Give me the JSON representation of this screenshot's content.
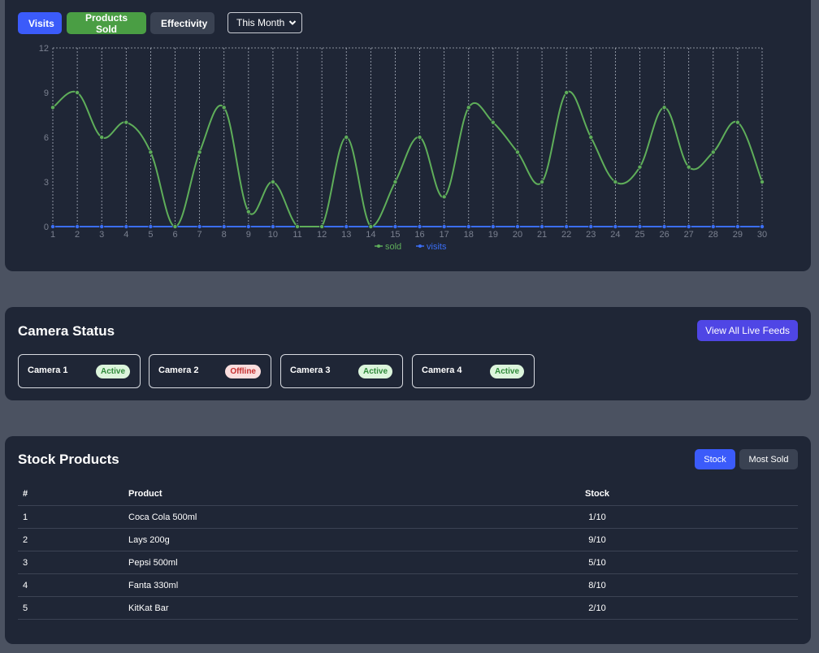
{
  "chart_controls": {
    "tabs": [
      {
        "label": "Visits",
        "color": "#3b5bfa"
      },
      {
        "label": "Products Sold",
        "color": "#4a9e44"
      },
      {
        "label": "Effectivity",
        "color": "#3a4252"
      }
    ],
    "range_select": {
      "value": "This Month",
      "icon": "chevron-down-icon"
    }
  },
  "chart_data": {
    "type": "line",
    "x": [
      1,
      2,
      3,
      4,
      5,
      6,
      7,
      8,
      9,
      10,
      11,
      12,
      13,
      14,
      15,
      16,
      17,
      18,
      19,
      20,
      21,
      22,
      23,
      24,
      25,
      26,
      27,
      28,
      29,
      30
    ],
    "series": [
      {
        "name": "sold",
        "color": "#5fae5a",
        "values": [
          8,
          9,
          6,
          7,
          5,
          0,
          5,
          8,
          1,
          3,
          0,
          0,
          6,
          0,
          3,
          6,
          2,
          8,
          7,
          5,
          3,
          9,
          6,
          3,
          4,
          8,
          4,
          5,
          7,
          3
        ]
      },
      {
        "name": "visits",
        "color": "#3b6ef5",
        "values": [
          0,
          0,
          0,
          0,
          0,
          0,
          0,
          0,
          0,
          0,
          0,
          0,
          0,
          0,
          0,
          0,
          0,
          0,
          0,
          0,
          0,
          0,
          0,
          0,
          0,
          0,
          0,
          0,
          0,
          0
        ]
      }
    ],
    "ylim": [
      0,
      12
    ],
    "yticks": [
      0,
      3,
      6,
      9,
      12
    ],
    "grid": "vertical dashed",
    "legend": "bottom-center",
    "xlabel": "",
    "ylabel": "",
    "title": ""
  },
  "camera": {
    "title": "Camera Status",
    "view_all_label": "View All Live Feeds",
    "cameras": [
      {
        "name": "Camera 1",
        "status": "Active"
      },
      {
        "name": "Camera 2",
        "status": "Offline"
      },
      {
        "name": "Camera 3",
        "status": "Active"
      },
      {
        "name": "Camera 4",
        "status": "Active"
      }
    ]
  },
  "stock": {
    "title": "Stock Products",
    "tabs": [
      "Stock",
      "Most Sold"
    ],
    "columns": [
      "#",
      "Product",
      "Stock"
    ],
    "rows": [
      {
        "idx": "1",
        "product": "Coca Cola 500ml",
        "stock": "1/10"
      },
      {
        "idx": "2",
        "product": "Lays 200g",
        "stock": "9/10"
      },
      {
        "idx": "3",
        "product": "Pepsi 500ml",
        "stock": "5/10"
      },
      {
        "idx": "4",
        "product": "Fanta 330ml",
        "stock": "8/10"
      },
      {
        "idx": "5",
        "product": "KitKat Bar",
        "stock": "2/10"
      }
    ]
  }
}
